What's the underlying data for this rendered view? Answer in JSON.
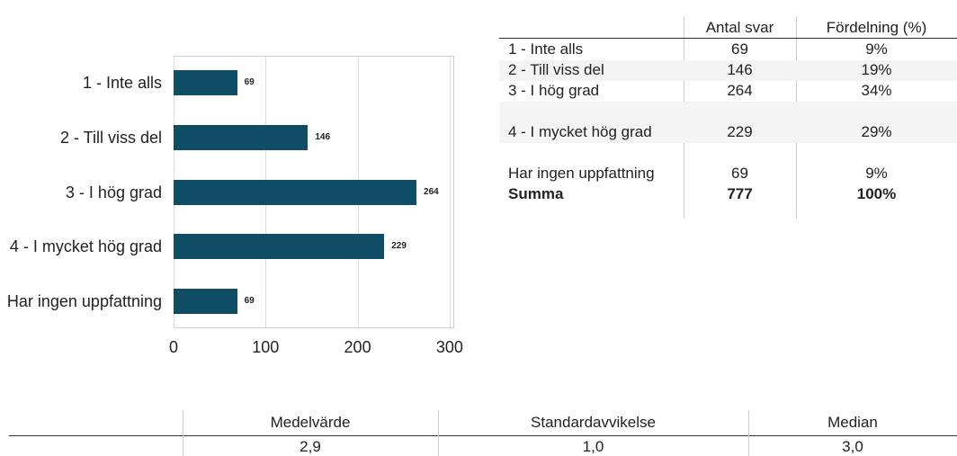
{
  "chart_data": {
    "type": "bar",
    "orientation": "horizontal",
    "categories": [
      "1 - Inte alls",
      "2 - Till viss del",
      "3 - I hög grad",
      "4 - I mycket hög grad",
      "Har ingen uppfattning"
    ],
    "values": [
      69,
      146,
      264,
      229,
      69
    ],
    "color": "#0e4d64",
    "xlim": [
      0,
      305
    ],
    "xticks": [
      0,
      100,
      200,
      300
    ],
    "grid": true
  },
  "table": {
    "columns": [
      "Antal svar",
      "Fördelning (%)"
    ],
    "rows": [
      [
        "1 - Inte alls",
        69,
        "9%"
      ],
      [
        "2 - Till viss del",
        146,
        "19%"
      ],
      [
        "3 - I hög grad",
        264,
        "34%"
      ],
      [
        "4 - I mycket hög grad",
        229,
        "29%"
      ],
      [
        "Har ingen uppfattning",
        69,
        "9%"
      ]
    ],
    "total": [
      "Summa",
      777,
      "100%"
    ]
  },
  "stats": {
    "columns": [
      "Medelvärde",
      "Standardavvikelse",
      "Median"
    ],
    "values": [
      "2,9",
      "1,0",
      "3,0"
    ]
  }
}
